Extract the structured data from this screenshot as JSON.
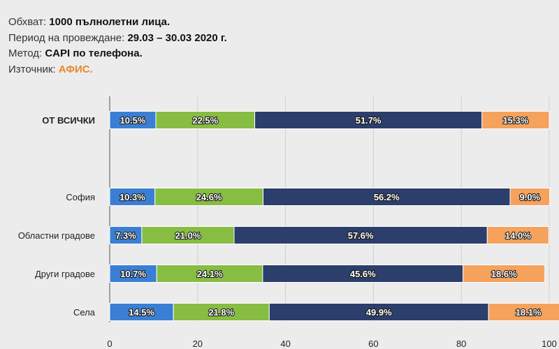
{
  "meta": {
    "sample_label": "Обхват:",
    "sample_value": "1000 пълнолетни лица.",
    "period_label": "Период на провеждане:",
    "period_value": "29.03 – 30.03 2020 г.",
    "method_label": "Метод:",
    "method_value": "CAPI по телефона.",
    "source_label": "Източник:",
    "source_value": "АФИС."
  },
  "chart_data": {
    "type": "bar",
    "orientation": "horizontal",
    "stacked": true,
    "categories": [
      "ОТ ВСИЧКИ",
      "",
      "София",
      "Областни градове",
      "Други градове",
      "Села"
    ],
    "series": [
      {
        "values": [
          10.5,
          null,
          10.3,
          7.3,
          10.7,
          14.5
        ],
        "labels": [
          "10.5%",
          "",
          "10.3%",
          "7.3%",
          "10.7%",
          "14.5%"
        ]
      },
      {
        "values": [
          22.5,
          null,
          24.6,
          21.0,
          24.1,
          21.8
        ],
        "labels": [
          "22.5%",
          "",
          "24.6%",
          "21.0%",
          "24.1%",
          "21.8%"
        ]
      },
      {
        "values": [
          51.7,
          null,
          56.2,
          57.6,
          45.6,
          49.9
        ],
        "labels": [
          "51.7%",
          "",
          "56.2%",
          "57.6%",
          "45.6%",
          "49.9%"
        ]
      },
      {
        "values": [
          15.3,
          null,
          9.0,
          14.0,
          18.6,
          18.1
        ],
        "labels": [
          "15.3%",
          "",
          "9.0%",
          "14.0%",
          "18.6%",
          "18.1%"
        ]
      }
    ],
    "colors": [
      "#3b7fd4",
      "#86bd42",
      "#2c3e6b",
      "#f5a25d"
    ],
    "xlim": [
      0,
      100
    ],
    "xticks": [
      "0",
      "20",
      "40",
      "60",
      "80",
      "100"
    ],
    "grid": true,
    "title": "",
    "xlabel": "",
    "ylabel": ""
  }
}
